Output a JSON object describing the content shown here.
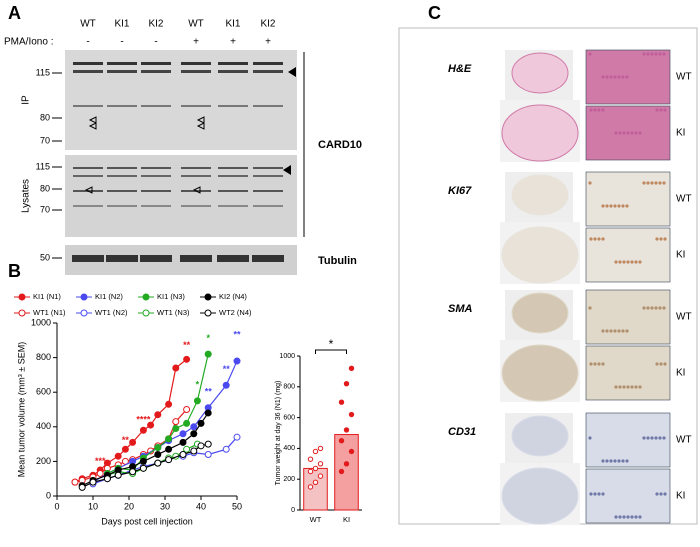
{
  "panel_a": {
    "letter": "A",
    "lanes": [
      "WT",
      "KI1",
      "KI2",
      "WT",
      "KI1",
      "KI2"
    ],
    "treatment_label": "PMA/Iono :",
    "treatment": [
      "-",
      "-",
      "-",
      "+",
      "+",
      "+"
    ],
    "ip_label": "IP",
    "lysates_label": "Lysates",
    "ip_markers": [
      "115",
      "80",
      "70"
    ],
    "lysate_markers": [
      "115",
      "80",
      "70"
    ],
    "tubulin_markers": [
      "50"
    ],
    "card10_label": "CARD10",
    "tubulin_label": "Tubulin"
  },
  "panel_b_letter": "B",
  "chart_data": [
    {
      "type": "line",
      "xlabel": "Days post cell injection",
      "ylabel": "Mean tumor volume (mm³ ± SEM)",
      "xlim": [
        0,
        50
      ],
      "xticks": [
        0,
        10,
        20,
        30,
        40,
        50
      ],
      "ylim": [
        0,
        1000
      ],
      "yticks": [
        0,
        200,
        400,
        600,
        800,
        1000
      ],
      "series": [
        {
          "name": "KI1 (N1)",
          "color": "#e31a1c",
          "filled": true,
          "x": [
            5,
            7,
            10,
            12,
            14,
            17,
            19,
            21,
            24,
            26,
            28,
            31,
            33,
            36
          ],
          "values": [
            80,
            100,
            120,
            150,
            190,
            230,
            270,
            310,
            380,
            410,
            470,
            530,
            740,
            790
          ]
        },
        {
          "name": "WT1 (N1)",
          "color": "#e31a1c",
          "filled": false,
          "x": [
            5,
            7,
            10,
            12,
            14,
            17,
            19,
            21,
            24,
            26,
            28,
            31,
            33,
            36
          ],
          "values": [
            80,
            90,
            110,
            130,
            160,
            180,
            200,
            210,
            240,
            260,
            290,
            330,
            430,
            500
          ]
        },
        {
          "name": "KI1 (N2)",
          "color": "#4a4af0",
          "filled": true,
          "x": [
            10,
            14,
            17,
            21,
            24,
            28,
            31,
            35,
            38,
            42,
            47,
            50
          ],
          "values": [
            80,
            130,
            160,
            200,
            230,
            280,
            320,
            360,
            400,
            510,
            640,
            780
          ]
        },
        {
          "name": "WT1 (N2)",
          "color": "#4a4af0",
          "filled": false,
          "x": [
            10,
            14,
            17,
            21,
            24,
            28,
            31,
            35,
            38,
            42,
            47,
            50
          ],
          "values": [
            70,
            100,
            120,
            150,
            170,
            190,
            210,
            230,
            250,
            240,
            270,
            340
          ]
        },
        {
          "name": "KI1 (N3)",
          "color": "#22aa22",
          "filled": true,
          "x": [
            14,
            17,
            21,
            24,
            28,
            31,
            33,
            36,
            39,
            42
          ],
          "values": [
            130,
            160,
            150,
            220,
            280,
            330,
            390,
            420,
            550,
            820
          ]
        },
        {
          "name": "WT1 (N3)",
          "color": "#22aa22",
          "filled": false,
          "x": [
            14,
            17,
            21,
            24,
            28,
            31,
            33,
            36,
            39
          ],
          "values": [
            120,
            140,
            130,
            160,
            190,
            220,
            230,
            270,
            300
          ]
        },
        {
          "name": "KI2 (N4)",
          "color": "#000000",
          "filled": true,
          "x": [
            7,
            10,
            14,
            17,
            21,
            24,
            28,
            31,
            35,
            38,
            40,
            42
          ],
          "values": [
            60,
            90,
            120,
            150,
            170,
            200,
            240,
            270,
            310,
            360,
            420,
            480
          ]
        },
        {
          "name": "WT2 (N4)",
          "color": "#000000",
          "filled": false,
          "x": [
            7,
            10,
            14,
            17,
            21,
            24,
            28,
            31,
            35,
            38,
            40,
            42
          ],
          "values": [
            50,
            80,
            100,
            120,
            140,
            160,
            190,
            210,
            240,
            260,
            290,
            300
          ]
        }
      ],
      "annotations": [
        {
          "text": "***",
          "x": 12,
          "y": 200,
          "color": "#e31a1c"
        },
        {
          "text": "**",
          "x": 19,
          "y": 320,
          "color": "#e31a1c"
        },
        {
          "text": "****",
          "x": 24,
          "y": 440,
          "color": "#e31a1c"
        },
        {
          "text": "**",
          "x": 36,
          "y": 870,
          "color": "#e31a1c"
        },
        {
          "text": "*",
          "x": 39,
          "y": 640,
          "color": "#22aa22"
        },
        {
          "text": "*",
          "x": 42,
          "y": 910,
          "color": "#22aa22"
        },
        {
          "text": "**",
          "x": 42,
          "y": 600,
          "color": "#4a4af0"
        },
        {
          "text": "**",
          "x": 47,
          "y": 730,
          "color": "#4a4af0"
        },
        {
          "text": "**",
          "x": 50,
          "y": 930,
          "color": "#4a4af0"
        }
      ]
    },
    {
      "type": "bar",
      "ylabel": "Tumor weight at day 36 (N1) (mg)",
      "categories": [
        "WT",
        "KI"
      ],
      "values": [
        270,
        490
      ],
      "colors": [
        "#f4c2c2",
        "#f4a0a0"
      ],
      "point_color": "#e31a1c",
      "points": [
        [
          150,
          180,
          220,
          250,
          270,
          300,
          330,
          380,
          400
        ],
        [
          250,
          300,
          380,
          450,
          520,
          620,
          700,
          820,
          920
        ]
      ],
      "ylim": [
        0,
        1000
      ],
      "yticks": [
        0,
        200,
        400,
        600,
        800,
        1000
      ],
      "significance": "*"
    }
  ],
  "panel_c": {
    "letter": "C",
    "stains": [
      {
        "label": "H&E",
        "groups": [
          "WT",
          "KI"
        ]
      },
      {
        "label": "KI67",
        "groups": [
          "WT",
          "KI"
        ]
      },
      {
        "label": "SMA",
        "groups": [
          "WT",
          "KI"
        ]
      },
      {
        "label": "CD31",
        "groups": [
          "WT",
          "KI"
        ]
      }
    ]
  }
}
